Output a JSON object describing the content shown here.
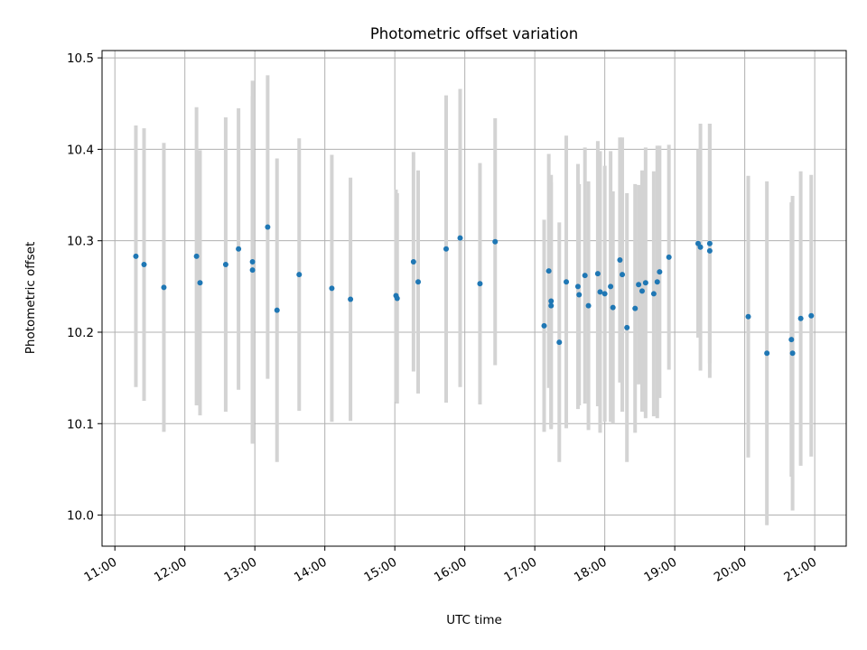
{
  "chart_data": {
    "type": "scatter",
    "title": "Photometric offset variation",
    "xlabel": "UTC time",
    "ylabel": "Photometric offset",
    "x_tick_labels": [
      "11:00",
      "12:00",
      "13:00",
      "14:00",
      "15:00",
      "16:00",
      "17:00",
      "18:00",
      "19:00",
      "20:00",
      "21:00"
    ],
    "x_tick_values": [
      "11:00",
      "12:00",
      "13:00",
      "14:00",
      "15:00",
      "16:00",
      "17:00",
      "18:00",
      "19:00",
      "20:00",
      "21:00"
    ],
    "y_ticks": [
      10.0,
      10.1,
      10.2,
      10.3,
      10.4,
      10.5
    ],
    "y_tick_labels": [
      "10.0",
      "10.1",
      "10.2",
      "10.3",
      "10.4",
      "10.5"
    ],
    "xlim": [
      "10:49",
      "21:27"
    ],
    "ylim": [
      9.966,
      10.508
    ],
    "grid": true,
    "point_color": "#1f77b4",
    "errorbar_color": "#d3d3d3",
    "series": [
      {
        "x": [
          "11:18",
          "11:25",
          "11:42",
          "12:10",
          "12:13",
          "12:35",
          "12:46",
          "12:58",
          "12:58",
          "13:11",
          "13:19",
          "13:38",
          "14:06",
          "14:22",
          "15:01",
          "15:02",
          "15:16",
          "15:20",
          "15:44",
          "15:56",
          "16:13",
          "16:26",
          "17:08",
          "17:12",
          "17:14",
          "17:14",
          "17:21",
          "17:27",
          "17:37",
          "17:38",
          "17:43",
          "17:46",
          "17:54",
          "17:56",
          "18:00",
          "18:05",
          "18:07",
          "18:13",
          "18:15",
          "18:19",
          "18:26",
          "18:29",
          "18:32",
          "18:35",
          "18:42",
          "18:45",
          "18:47",
          "18:55",
          "19:20",
          "19:22",
          "19:30",
          "19:30",
          "20:03",
          "20:19",
          "20:40",
          "20:41",
          "20:48",
          "20:57"
        ],
        "y": [
          10.283,
          10.274,
          10.249,
          10.283,
          10.254,
          10.274,
          10.291,
          10.277,
          10.268,
          10.315,
          10.224,
          10.263,
          10.248,
          10.236,
          10.24,
          10.237,
          10.277,
          10.255,
          10.291,
          10.303,
          10.253,
          10.299,
          10.207,
          10.267,
          10.234,
          10.229,
          10.189,
          10.255,
          10.25,
          10.241,
          10.262,
          10.229,
          10.264,
          10.244,
          10.242,
          10.25,
          10.227,
          10.279,
          10.263,
          10.205,
          10.226,
          10.252,
          10.245,
          10.254,
          10.242,
          10.255,
          10.266,
          10.282,
          10.297,
          10.293,
          10.297,
          10.289,
          10.217,
          10.177,
          10.192,
          10.177,
          10.215,
          10.218
        ],
        "y_err": [
          0.143,
          0.149,
          0.158,
          0.163,
          0.145,
          0.161,
          0.154,
          0.198,
          0.19,
          0.166,
          0.166,
          0.149,
          0.146,
          0.133,
          0.116,
          0.115,
          0.12,
          0.122,
          0.168,
          0.163,
          0.132,
          0.135,
          0.116,
          0.128,
          0.138,
          0.135,
          0.131,
          0.16,
          0.134,
          0.121,
          0.14,
          0.136,
          0.145,
          0.154,
          0.14,
          0.148,
          0.127,
          0.134,
          0.15,
          0.147,
          0.136,
          0.109,
          0.132,
          0.148,
          0.134,
          0.149,
          0.138,
          0.123,
          0.103,
          0.135,
          0.131,
          0.139,
          0.154,
          0.188,
          0.15,
          0.172,
          0.161,
          0.154
        ]
      }
    ]
  }
}
